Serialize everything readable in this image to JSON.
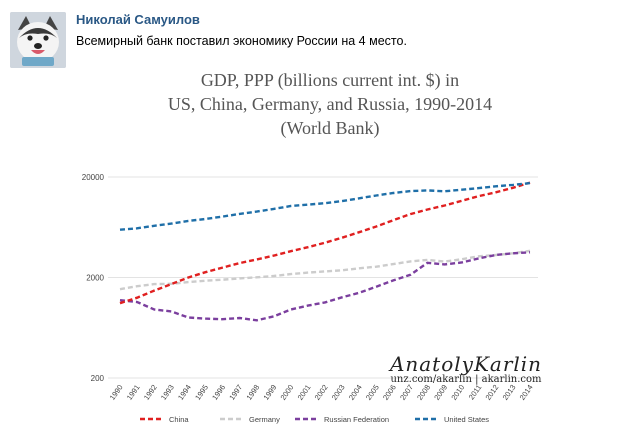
{
  "post": {
    "author": "Николай Самуилов",
    "text": "Всемирный банк поставил экономику России на 4 место."
  },
  "watermark": {
    "name": "AnatolyKarlin",
    "sub": "unz.com/akarlin | akarlin.com"
  },
  "colors": {
    "china": "#e02020",
    "germany": "#cccccc",
    "russia": "#7b3f9e",
    "us": "#1f6fa8",
    "link": "#2a5885"
  },
  "chart_data": {
    "type": "line",
    "title_lines": [
      "GDP, PPP (billions current int. $) in",
      "US, China, Germany, and Russia, 1990-2014",
      "(World Bank)"
    ],
    "xlabel": "",
    "ylabel": "",
    "yscale": "log",
    "ylim": [
      200,
      20000
    ],
    "yticks": [
      "20000",
      "2000",
      "200"
    ],
    "ytick_values": [
      20000,
      2000,
      200
    ],
    "categories": [
      "1990",
      "1991",
      "1992",
      "1993",
      "1994",
      "1995",
      "1996",
      "1997",
      "1998",
      "1999",
      "2000",
      "2001",
      "2002",
      "2003",
      "2004",
      "2005",
      "2006",
      "2007",
      "2008",
      "2009",
      "2010",
      "2011",
      "2012",
      "2013",
      "2014"
    ],
    "series": [
      {
        "name": "China",
        "color": "#e02020",
        "values": [
          1110,
          1260,
          1480,
          1720,
          2000,
          2260,
          2510,
          2780,
          3020,
          3300,
          3650,
          4000,
          4440,
          4980,
          5640,
          6440,
          7440,
          8540,
          9490,
          10400,
          11600,
          12900,
          14100,
          15600,
          17600
        ]
      },
      {
        "name": "Germany",
        "color": "#cccccc",
        "values": [
          1530,
          1640,
          1720,
          1730,
          1800,
          1860,
          1900,
          1960,
          2010,
          2070,
          2160,
          2240,
          2300,
          2360,
          2470,
          2560,
          2720,
          2890,
          2990,
          2880,
          3040,
          3250,
          3350,
          3480,
          3690
        ]
      },
      {
        "name": "Russian Federation",
        "color": "#7b3f9e",
        "values": [
          1190,
          1140,
          960,
          920,
          800,
          780,
          770,
          790,
          750,
          820,
          960,
          1050,
          1130,
          1270,
          1410,
          1620,
          1870,
          2130,
          2800,
          2700,
          2820,
          3100,
          3350,
          3480,
          3560
        ]
      },
      {
        "name": "United States",
        "color": "#1f6fa8",
        "values": [
          5980,
          6170,
          6540,
          6880,
          7310,
          7640,
          8070,
          8580,
          9060,
          9630,
          10280,
          10620,
          10980,
          11510,
          12270,
          13090,
          13860,
          14480,
          14720,
          14420,
          14960,
          15520,
          16160,
          16690,
          17390
        ]
      }
    ]
  }
}
